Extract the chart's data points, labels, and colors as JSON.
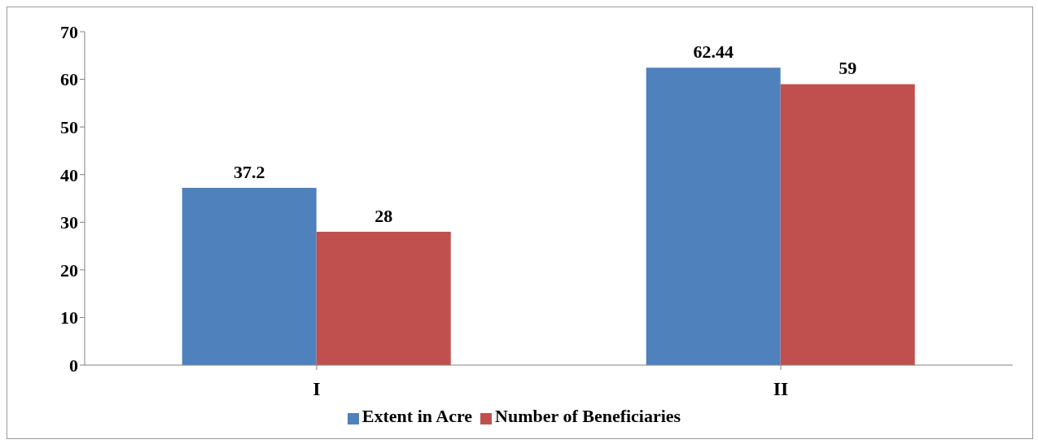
{
  "chart_data": {
    "type": "bar",
    "categories": [
      "I",
      "II"
    ],
    "series": [
      {
        "name": "Extent in Acre",
        "color": "#4f81bd",
        "values": [
          37.2,
          62.44
        ]
      },
      {
        "name": "Number of Beneficiaries",
        "color": "#c0504d",
        "values": [
          28,
          59
        ]
      }
    ],
    "ylim": [
      0,
      70
    ],
    "yticks": [
      0,
      10,
      20,
      30,
      40,
      50,
      60,
      70
    ],
    "grid": false,
    "legend": "bottom",
    "data_labels": true
  }
}
